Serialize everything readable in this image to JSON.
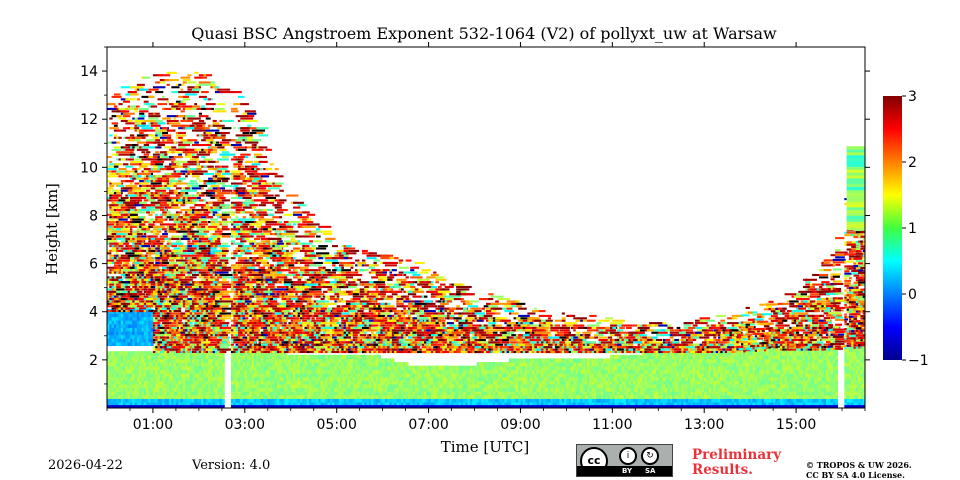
{
  "chart_data": {
    "type": "heatmap",
    "title": "Quasi BSC Angstroem Exponent 532-1064 (V2) of pollyxt_uw at Warsaw",
    "xlabel": "Time [UTC]",
    "ylabel": "Height [km]",
    "xlim": [
      0.0,
      16.5
    ],
    "ylim": [
      0.0,
      15.0
    ],
    "x_ticks": [
      1,
      3,
      5,
      7,
      9,
      11,
      13,
      15
    ],
    "x_tick_labels": [
      "01:00",
      "03:00",
      "05:00",
      "07:00",
      "09:00",
      "11:00",
      "13:00",
      "15:00"
    ],
    "y_ticks": [
      2,
      4,
      6,
      8,
      10,
      12,
      14
    ],
    "y_tick_labels": [
      "2",
      "4",
      "6",
      "8",
      "10",
      "12",
      "14"
    ],
    "colorbar": {
      "min": -1,
      "max": 3,
      "ticks": [
        -1,
        0,
        1,
        2,
        3
      ],
      "tick_labels": [
        "−1",
        "0",
        "1",
        "2",
        "3"
      ],
      "colormap": "jet"
    },
    "data_gaps_hours": [
      [
        2.55,
        2.72
      ],
      [
        15.9,
        16.05
      ]
    ],
    "layers": [
      {
        "name": "boundary-layer",
        "t_start": 0.0,
        "t_end": 16.5,
        "base_km": 0.1,
        "top_km": [
          2.3,
          2.3,
          2.3,
          2.2,
          2.2,
          2.1,
          2.1,
          1.6,
          1.7,
          1.9,
          1.9,
          2.0,
          2.2,
          2.3,
          2.3,
          2.4,
          2.4,
          2.5
        ],
        "value": 1.1
      },
      {
        "name": "early-aerosol-layer",
        "t_start": 0.0,
        "t_end": 1.0,
        "base_km": 2.6,
        "top_km": 4.0,
        "value": 0.2
      },
      {
        "name": "lofted-noisy-aerosol",
        "t_start": 0.0,
        "t_end": 16.5,
        "base_km": 2.3,
        "top_km": [
          13,
          14,
          14,
          13,
          9,
          7,
          6.5,
          6,
          5,
          4.5,
          4,
          3.8,
          3.6,
          3.6,
          4,
          4.5,
          6,
          11
        ],
        "value": 1.8
      }
    ]
  },
  "footer": {
    "date": "2026-04-22",
    "version": "Version: 4.0",
    "preliminary": "Preliminary Results.",
    "copyright_line1": "© TROPOS & UW 2026.",
    "copyright_line2": "CC BY SA 4.0 License."
  },
  "license_badge": {
    "cc": "cc",
    "by": "BY",
    "sa": "SA"
  }
}
